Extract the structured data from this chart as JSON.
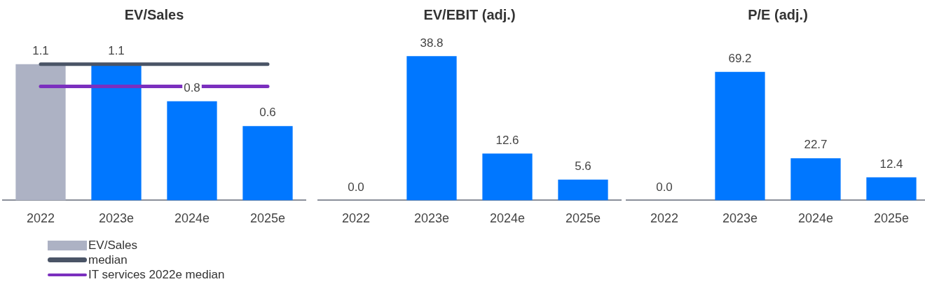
{
  "chart_data": [
    {
      "type": "bar",
      "title": "EV/Sales",
      "categories": [
        "2022",
        "2023e",
        "2024e",
        "2025e"
      ],
      "series": [
        {
          "name": "EV/Sales",
          "color": "#adb2c4",
          "colors": [
            "#adb2c4",
            "#0077ff",
            "#0077ff",
            "#0077ff"
          ],
          "values": [
            1.1,
            1.1,
            0.8,
            0.6
          ],
          "value_labels": [
            "1.1",
            "1.1",
            "0.8",
            "0.6"
          ]
        }
      ],
      "ref_lines": [
        {
          "axis": "y",
          "value": 1.1,
          "label": "median",
          "color": "#4a5466"
        },
        {
          "axis": "y",
          "value": 0.92,
          "label": "IT services 2022e median",
          "color": "#7b2fbe"
        }
      ],
      "grid": false,
      "legend": "bottom",
      "tick_labels": "x"
    },
    {
      "type": "bar",
      "title": "EV/EBIT (adj.)",
      "categories": [
        "2022",
        "2023e",
        "2024e",
        "2025e"
      ],
      "series": [
        {
          "color": "#0077ff",
          "values": [
            0,
            38.8,
            12.6,
            5.6
          ],
          "value_labels": [
            "0.0",
            "38.8",
            "12.6",
            "5.6"
          ]
        }
      ],
      "grid": false,
      "legend": false,
      "tick_labels": "x"
    },
    {
      "type": "bar",
      "title": "P/E (adj.)",
      "categories": [
        "2022",
        "2023e",
        "2024e",
        "2025e"
      ],
      "series": [
        {
          "color": "#0077ff",
          "values": [
            0,
            69.2,
            22.7,
            12.4
          ],
          "value_labels": [
            "0.0",
            "69.2",
            "22.7",
            "12.4"
          ]
        }
      ],
      "grid": false,
      "legend": false,
      "tick_labels": "x"
    }
  ]
}
